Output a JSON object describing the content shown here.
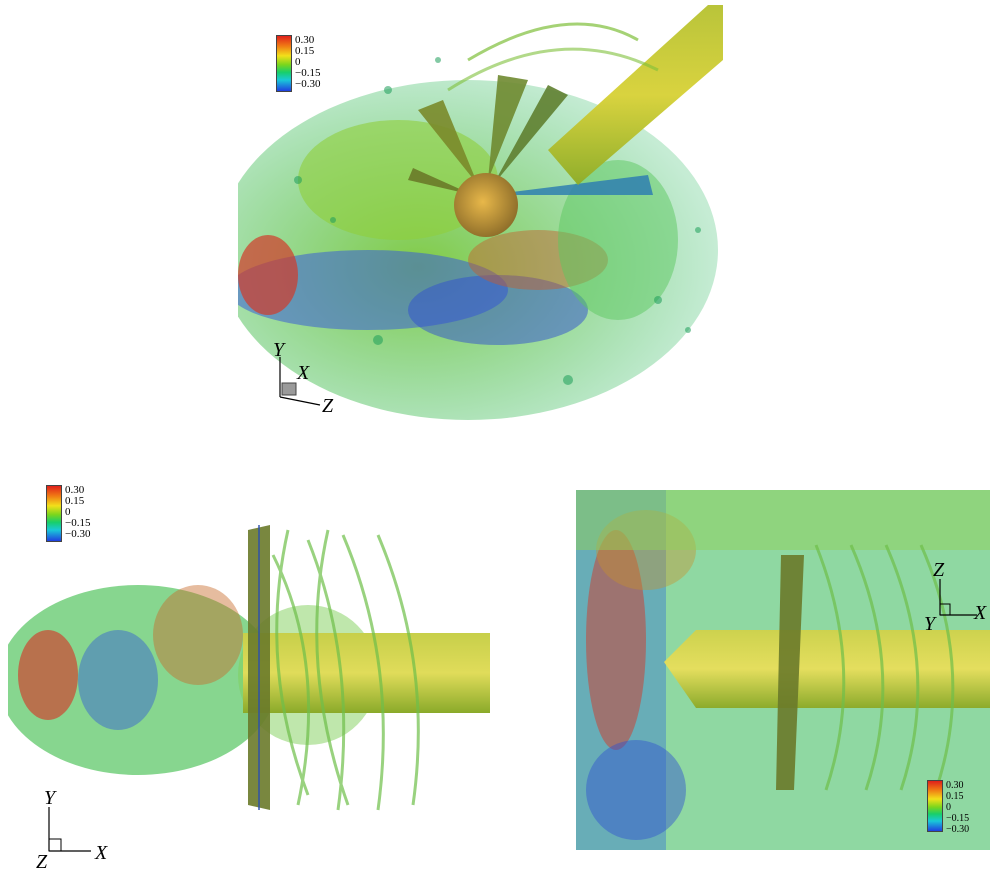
{
  "legend_top": {
    "ticks": [
      "0.30",
      "0.15",
      "0",
      "−0.15",
      "−0.30"
    ]
  },
  "legend_bottom_left": {
    "ticks": [
      "0.30",
      "0.15",
      "0",
      "−0.15",
      "−0.30"
    ]
  },
  "legend_bottom_right": {
    "ticks": [
      "0.30",
      "0.15",
      "0",
      "−0.15",
      "−0.30"
    ]
  },
  "axes_top": {
    "y": "Y",
    "x": "X",
    "z": "Z"
  },
  "axes_bottom_left": {
    "y": "Y",
    "x": "X",
    "z": "Z"
  },
  "axes_bottom_right": {
    "z": "Z",
    "x": "X",
    "y": "Y"
  },
  "colormap": [
    "#e0201b",
    "#f07a14",
    "#f2e01a",
    "#7cd61c",
    "#18cf6a",
    "#19c9d8",
    "#1f3fe0"
  ]
}
